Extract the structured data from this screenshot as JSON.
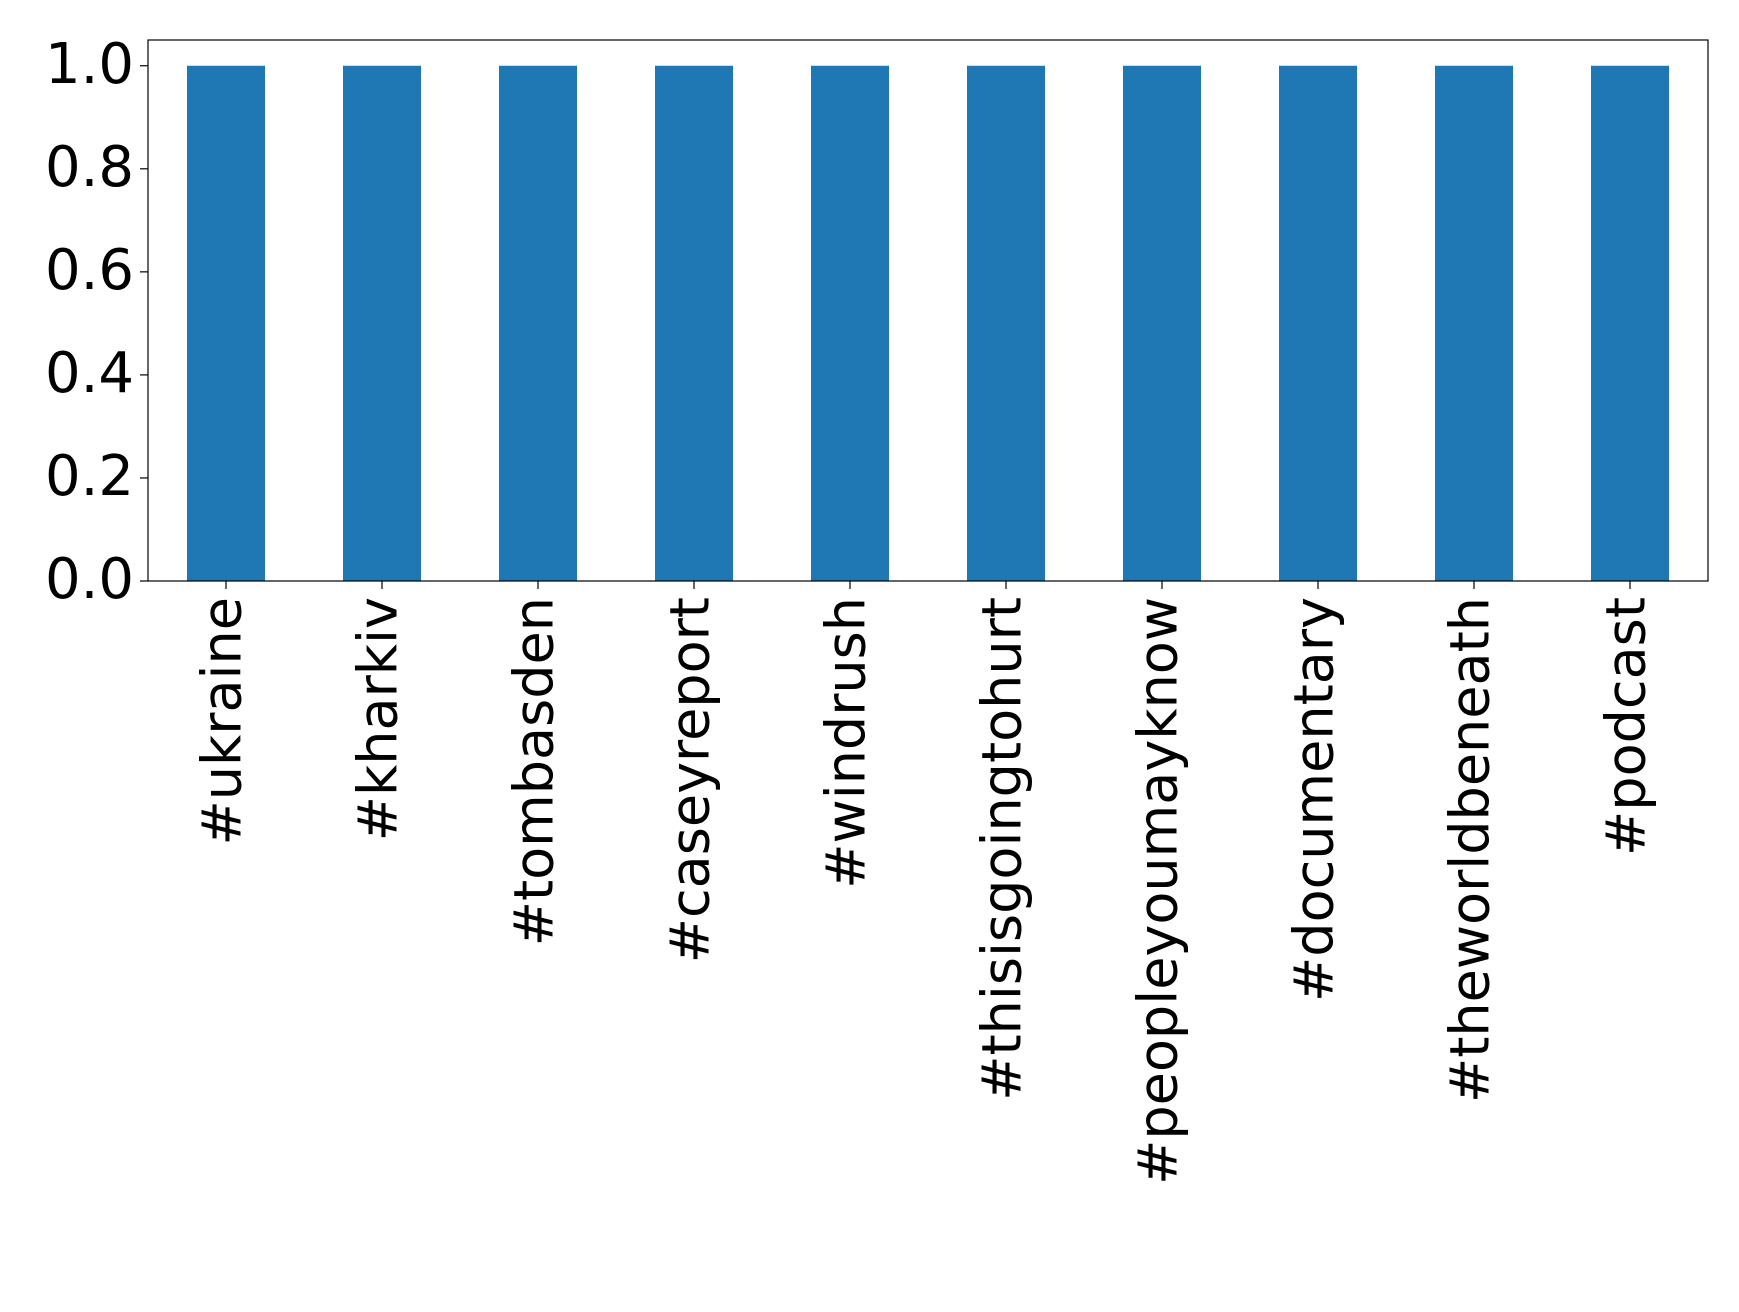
{
  "chart_data": {
    "type": "bar",
    "categories": [
      "#ukraine",
      "#kharkiv",
      "#tombasden",
      "#caseyreport",
      "#windrush",
      "#thisisgoingtohurt",
      "#peopleyoumayknow",
      "#documentary",
      "#theworldbeneath",
      "#podcast"
    ],
    "values": [
      1,
      1,
      1,
      1,
      1,
      1,
      1,
      1,
      1,
      1
    ],
    "color": "#1f77b4",
    "ylim": [
      0,
      1.05
    ],
    "yticks": [
      {
        "value": 0,
        "label": "0.0"
      },
      0.2,
      0.4,
      0.6,
      0.8,
      {
        "value": 1,
        "label": "1.0"
      }
    ],
    "grid": false
  }
}
